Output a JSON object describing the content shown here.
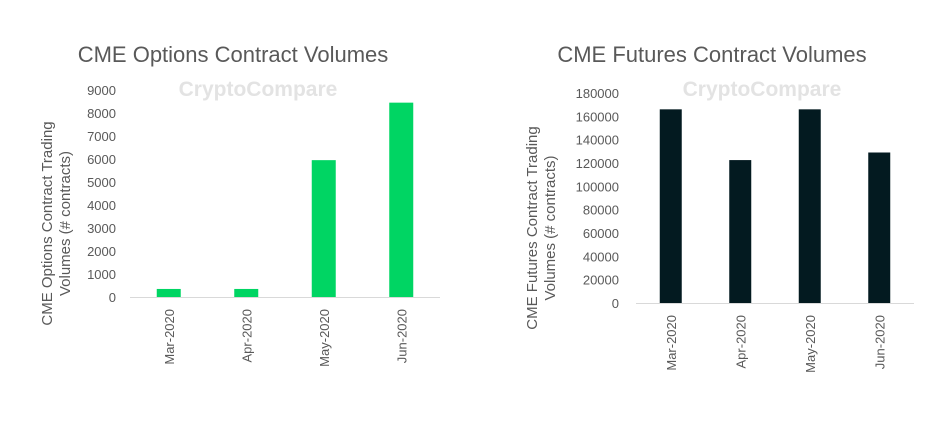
{
  "chart_data": [
    {
      "type": "bar",
      "title": "CME Options Contract Volumes",
      "watermark": "CryptoCompare",
      "ylabel": "CME Options Contract Trading Volumes (# contracts)",
      "xlabel": "",
      "categories": [
        "Mar-2020",
        "Apr-2020",
        "May-2020",
        "Jun-2020"
      ],
      "values": [
        350,
        350,
        5950,
        8450
      ],
      "ylim": [
        0,
        9000
      ],
      "yticks": [
        "0",
        "1000",
        "2000",
        "3000",
        "4000",
        "5000",
        "6000",
        "7000",
        "8000",
        "9000"
      ],
      "color": "#00d563",
      "grid": false
    },
    {
      "type": "bar",
      "title": "CME Futures Contract Volumes",
      "watermark": "CryptoCompare",
      "ylabel": "CME Futures Contract Trading Volumes (# contracts)",
      "xlabel": "",
      "categories": [
        "Mar-2020",
        "Apr-2020",
        "May-2020",
        "Jun-2020"
      ],
      "values": [
        166000,
        122500,
        166000,
        129000
      ],
      "ylim": [
        0,
        180000
      ],
      "yticks": [
        "0",
        "20000",
        "40000",
        "60000",
        "80000",
        "100000",
        "120000",
        "140000",
        "160000",
        "180000"
      ],
      "color": "#031a20",
      "grid": false
    }
  ]
}
